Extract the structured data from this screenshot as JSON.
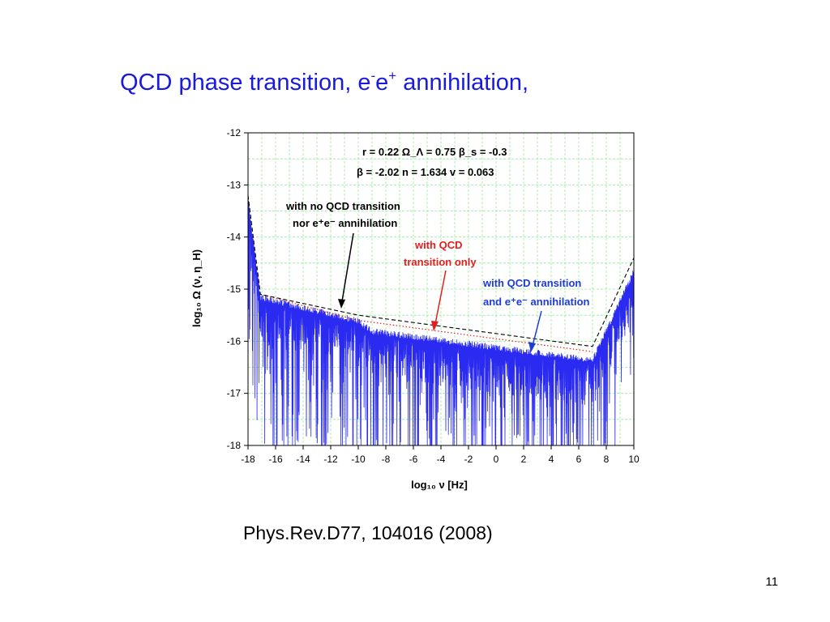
{
  "slide": {
    "title_main": "QCD phase transition,   e",
    "title_sup_minus": "-",
    "title_e": "e",
    "title_sup_plus": "+",
    "title_tail": "  annihilation,",
    "citation": "Phys.Rev.D77,   104016   (2008)",
    "page_number": "11"
  },
  "colors": {
    "title": "#1a1adc",
    "spectrum": "#2a2af0",
    "no_qcd_line": "#000000",
    "qcd_only_line": "#e02020",
    "grid": "#9be89b",
    "red_label": "#e02020",
    "blue_label": "#1e3cd6"
  },
  "chart_data": {
    "type": "line",
    "xlabel": "log₁₀ ν [Hz]",
    "ylabel": "log₁₀ Ω (ν, η_H)",
    "xlim": [
      -18,
      10
    ],
    "ylim": [
      -18,
      -12
    ],
    "x_ticks": [
      "-18",
      "-16",
      "-14",
      "-12",
      "-10",
      "-8",
      "-6",
      "-4",
      "-2",
      "0",
      "2",
      "4",
      "6",
      "8",
      "10"
    ],
    "y_ticks": [
      "-12",
      "-13",
      "-14",
      "-15",
      "-16",
      "-17",
      "-18"
    ],
    "grid": true,
    "params_line1": "r = 0.22  Ω_Λ = 0.75  β_s = -0.3",
    "params_line2": "β = -2.02  n = 1.634   v = 0.063",
    "series": [
      {
        "name": "with no QCD transition nor e⁺e⁻ annihilation",
        "style": "dashed",
        "x": [
          -18,
          -17.1,
          -10,
          7,
          10
        ],
        "y": [
          -13.2,
          -15.1,
          -15.5,
          -16.1,
          -14.4
        ]
      },
      {
        "name": "with QCD transition only",
        "style": "dotted",
        "x": [
          -17.1,
          -10,
          7
        ],
        "y": [
          -15.1,
          -15.6,
          -16.2
        ]
      },
      {
        "name": "with QCD transition and e⁺e⁻ annihilation",
        "style": "solid-oscillating",
        "envelope_x": [
          -18,
          -17.1,
          -10,
          -9,
          7,
          10
        ],
        "envelope_y": [
          -13.2,
          -15.1,
          -15.55,
          -15.75,
          -16.3,
          -14.6
        ]
      }
    ],
    "annotations": [
      {
        "line1": "with no QCD transition",
        "line2": "nor e⁺e⁻ annihilation",
        "color": "black"
      },
      {
        "line1": "with QCD",
        "line2": "transition only",
        "color": "red"
      },
      {
        "line1": "with QCD transition",
        "line2": "and e⁺e⁻ annihilation",
        "color": "blue"
      }
    ]
  }
}
